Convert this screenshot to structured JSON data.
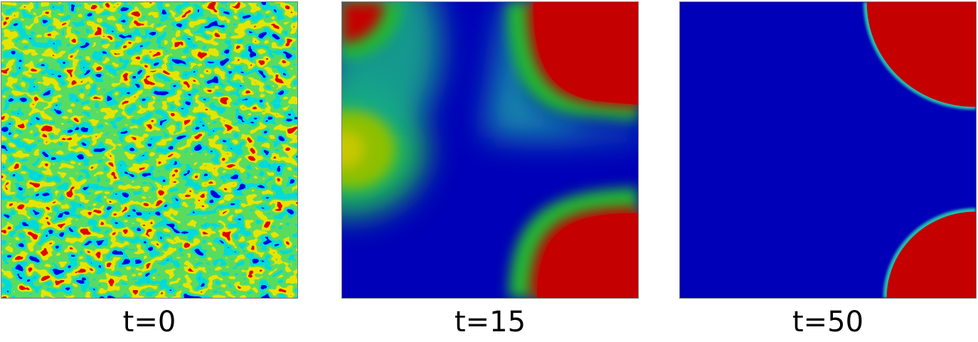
{
  "panels": [
    {
      "id": "t0",
      "label": "t=0"
    },
    {
      "id": "t15",
      "label": "t=15"
    },
    {
      "id": "t50",
      "label": "t=50"
    }
  ],
  "colors": {
    "low": "#0000b8",
    "high": "#c40000",
    "mid_green": "#19b81f",
    "mid_yellow": "#c8c800",
    "interface_cyan": "#21c2b8"
  }
}
